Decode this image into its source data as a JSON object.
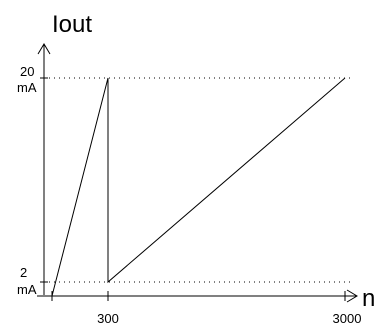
{
  "chart_data": {
    "type": "line",
    "ylabel": "Iout",
    "xlabel": "n",
    "y_tick_values": [
      "20",
      "mA",
      "2",
      "mA"
    ],
    "x_tick_labels": [
      "300",
      "3000"
    ],
    "series": [
      {
        "x": [
          0,
          300,
          300,
          3000
        ],
        "y": [
          0,
          20,
          2,
          20
        ]
      }
    ]
  }
}
